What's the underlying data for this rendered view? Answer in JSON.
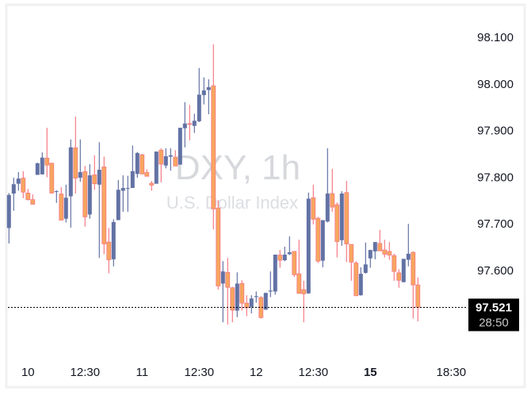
{
  "chart_data": {
    "type": "candlestick",
    "watermark": {
      "symbol": "DXY, 1h",
      "name": "U.S. Dollar Index"
    },
    "ylim": [
      97.43,
      98.19
    ],
    "y_ticks": [
      "98.100",
      "98.000",
      "97.900",
      "97.800",
      "97.700",
      "97.600"
    ],
    "x_ticks": [
      {
        "label": "10",
        "bar": 4,
        "bold": false
      },
      {
        "label": "12:30",
        "bar": 16,
        "bold": false
      },
      {
        "label": "11",
        "bar": 28,
        "bold": false
      },
      {
        "label": "12:30",
        "bar": 40,
        "bold": false
      },
      {
        "label": "12",
        "bar": 52,
        "bold": false
      },
      {
        "label": "12:30",
        "bar": 64,
        "bold": false
      },
      {
        "label": "15",
        "bar": 76,
        "bold": true
      },
      {
        "label": "18:30",
        "bar": 93,
        "bold": false
      }
    ],
    "ohlc_columns": [
      "open",
      "high",
      "low",
      "close"
    ],
    "ohlc": [
      [
        97.691,
        97.766,
        97.658,
        97.762
      ],
      [
        97.765,
        97.799,
        97.728,
        97.785
      ],
      [
        97.786,
        97.811,
        97.771,
        97.797
      ],
      [
        97.798,
        97.813,
        97.755,
        97.768
      ],
      [
        97.766,
        97.775,
        97.75,
        97.752
      ],
      [
        97.752,
        97.763,
        97.742,
        97.742
      ],
      [
        97.805,
        97.831,
        97.805,
        97.83
      ],
      [
        97.806,
        97.853,
        97.806,
        97.842
      ],
      [
        97.841,
        97.906,
        97.8,
        97.826
      ],
      [
        97.83,
        97.831,
        97.765,
        97.766
      ],
      [
        97.769,
        97.772,
        97.745,
        97.77
      ],
      [
        97.764,
        97.779,
        97.708,
        97.708
      ],
      [
        97.711,
        97.784,
        97.703,
        97.756
      ],
      [
        97.759,
        97.881,
        97.692,
        97.864
      ],
      [
        97.863,
        97.93,
        97.765,
        97.798
      ],
      [
        97.799,
        97.881,
        97.79,
        97.811
      ],
      [
        97.812,
        97.824,
        97.694,
        97.715
      ],
      [
        97.72,
        97.828,
        97.711,
        97.804
      ],
      [
        97.805,
        97.847,
        97.773,
        97.786
      ],
      [
        97.784,
        97.875,
        97.627,
        97.816
      ],
      [
        97.822,
        97.844,
        97.635,
        97.657
      ],
      [
        97.661,
        97.691,
        97.594,
        97.623
      ],
      [
        97.624,
        97.71,
        97.609,
        97.704
      ],
      [
        97.708,
        97.794,
        97.708,
        97.773
      ],
      [
        97.771,
        97.804,
        97.726,
        97.777
      ],
      [
        97.776,
        97.803,
        97.726,
        97.777
      ],
      [
        97.777,
        97.868,
        97.777,
        97.813
      ],
      [
        97.807,
        97.854,
        97.799,
        97.852
      ],
      [
        97.848,
        97.85,
        97.806,
        97.807
      ],
      [
        97.81,
        97.817,
        97.802,
        97.802
      ],
      [
        97.787,
        97.792,
        97.771,
        97.783
      ],
      [
        97.786,
        97.855,
        97.786,
        97.855
      ],
      [
        97.858,
        97.862,
        97.789,
        97.828
      ],
      [
        97.825,
        97.862,
        97.819,
        97.845
      ],
      [
        97.844,
        97.862,
        97.814,
        97.847
      ],
      [
        97.843,
        97.858,
        97.824,
        97.824
      ],
      [
        97.827,
        97.906,
        97.827,
        97.906
      ],
      [
        97.905,
        97.961,
        97.864,
        97.915
      ],
      [
        97.915,
        97.955,
        97.879,
        97.914
      ],
      [
        97.91,
        97.936,
        97.895,
        97.921
      ],
      [
        97.92,
        98.034,
        97.918,
        97.977
      ],
      [
        97.976,
        98.014,
        97.956,
        97.986
      ],
      [
        97.987,
        98.01,
        97.935,
        97.993
      ],
      [
        97.996,
        98.085,
        97.688,
        97.732
      ],
      [
        97.734,
        97.751,
        97.559,
        97.567
      ],
      [
        97.572,
        97.62,
        97.489,
        97.598
      ],
      [
        97.596,
        97.627,
        97.484,
        97.564
      ],
      [
        97.563,
        97.565,
        97.489,
        97.515
      ],
      [
        97.514,
        97.596,
        97.5,
        97.572
      ],
      [
        97.572,
        97.579,
        97.514,
        97.53
      ],
      [
        97.53,
        97.547,
        97.502,
        97.52
      ],
      [
        97.522,
        97.547,
        97.508,
        97.54
      ],
      [
        97.543,
        97.555,
        97.531,
        97.545
      ],
      [
        97.542,
        97.545,
        97.497,
        97.499
      ],
      [
        97.516,
        97.552,
        97.516,
        97.552
      ],
      [
        97.555,
        97.598,
        97.543,
        97.557
      ],
      [
        97.555,
        97.634,
        97.548,
        97.634
      ],
      [
        97.633,
        97.644,
        97.606,
        97.622
      ],
      [
        97.622,
        97.651,
        97.62,
        97.634
      ],
      [
        97.635,
        97.673,
        97.633,
        97.639
      ],
      [
        97.641,
        97.641,
        97.586,
        97.591
      ],
      [
        97.593,
        97.666,
        97.55,
        97.551
      ],
      [
        97.559,
        97.578,
        97.489,
        97.55
      ],
      [
        97.551,
        97.767,
        97.55,
        97.754
      ],
      [
        97.756,
        97.784,
        97.699,
        97.71
      ],
      [
        97.712,
        97.715,
        97.616,
        97.62
      ],
      [
        97.621,
        97.708,
        97.607,
        97.708
      ],
      [
        97.705,
        97.862,
        97.703,
        97.765
      ],
      [
        97.765,
        97.818,
        97.726,
        97.736
      ],
      [
        97.741,
        97.746,
        97.628,
        97.662
      ],
      [
        97.665,
        97.77,
        97.653,
        97.765
      ],
      [
        97.767,
        97.792,
        97.618,
        97.657
      ],
      [
        97.656,
        97.656,
        97.578,
        97.618
      ],
      [
        97.616,
        97.62,
        97.545,
        97.546
      ],
      [
        97.547,
        97.607,
        97.546,
        97.593
      ],
      [
        97.595,
        97.66,
        97.593,
        97.613
      ],
      [
        97.626,
        97.644,
        97.606,
        97.644
      ],
      [
        97.641,
        97.661,
        97.624,
        97.661
      ],
      [
        97.658,
        97.687,
        97.642,
        97.642
      ],
      [
        97.644,
        97.666,
        97.628,
        97.635
      ],
      [
        97.641,
        97.661,
        97.623,
        97.633
      ],
      [
        97.632,
        97.636,
        97.578,
        97.598
      ],
      [
        97.595,
        97.603,
        97.563,
        97.579
      ],
      [
        97.575,
        97.625,
        97.575,
        97.625
      ],
      [
        97.623,
        97.7,
        97.609,
        97.636
      ],
      [
        97.639,
        97.641,
        97.497,
        97.569
      ],
      [
        97.569,
        97.585,
        97.491,
        97.521
      ]
    ],
    "last_price": {
      "value": "97.521",
      "countdown": "28:50"
    },
    "colors": {
      "up": "#6272a4",
      "down_fill": "#f7a65e",
      "down_outline": "#f57a85",
      "label_bg": "#000000",
      "frame": "#f0f0f0"
    },
    "grid": false
  }
}
